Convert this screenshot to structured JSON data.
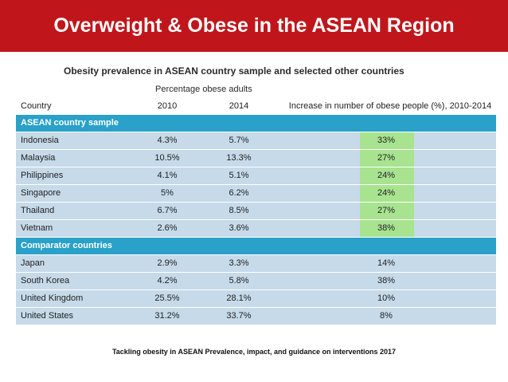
{
  "header": {
    "title": "Overweight & Obese in the ASEAN Region",
    "bg_color": "#c0161b"
  },
  "table_title": "Obesity prevalence in ASEAN country sample and selected other countries",
  "table_subhead": "Percentage obese adults",
  "columns": {
    "country": "Country",
    "y2010": "2010",
    "y2014": "2014",
    "increase": "Increase in number of obese people (%), 2010-2014"
  },
  "sections": [
    {
      "label": "ASEAN country sample",
      "rows": [
        {
          "country": "Indonesia",
          "y2010": "4.3%",
          "y2014": "5.7%",
          "increase": "33%",
          "highlight": true
        },
        {
          "country": "Malaysia",
          "y2010": "10.5%",
          "y2014": "13.3%",
          "increase": "27%",
          "highlight": true
        },
        {
          "country": "Philippines",
          "y2010": "4.1%",
          "y2014": "5.1%",
          "increase": "24%",
          "highlight": true
        },
        {
          "country": "Singapore",
          "y2010": "5%",
          "y2014": "6.2%",
          "increase": "24%",
          "highlight": true
        },
        {
          "country": "Thailand",
          "y2010": "6.7%",
          "y2014": "8.5%",
          "increase": "27%",
          "highlight": true
        },
        {
          "country": "Vietnam",
          "y2010": "2.6%",
          "y2014": "3.6%",
          "increase": "38%",
          "highlight": true
        }
      ]
    },
    {
      "label": "Comparator countries",
      "rows": [
        {
          "country": "Japan",
          "y2010": "2.9%",
          "y2014": "3.3%",
          "increase": "14%",
          "highlight": false
        },
        {
          "country": "South Korea",
          "y2010": "4.2%",
          "y2014": "5.8%",
          "increase": "38%",
          "highlight": false
        },
        {
          "country": "United Kingdom",
          "y2010": "25.5%",
          "y2014": "28.1%",
          "increase": "10%",
          "highlight": false
        },
        {
          "country": "United States",
          "y2010": "31.2%",
          "y2014": "33.7%",
          "increase": "8%",
          "highlight": false
        }
      ]
    }
  ],
  "colors": {
    "section_bg": "#2aa1c8",
    "row_bg": "#c6dae9",
    "highlight": "#a8e38f"
  },
  "footer": "Tackling obesity in ASEAN Prevalence, impact, and guidance on interventions 2017"
}
